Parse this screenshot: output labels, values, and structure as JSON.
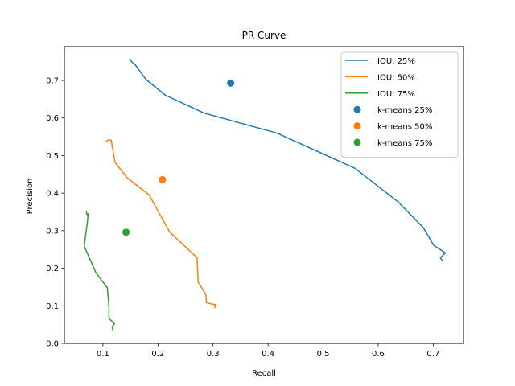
{
  "chart_data": {
    "type": "line",
    "title": "PR Curve",
    "xlabel": "Recall",
    "ylabel": "Precision",
    "xlim": [
      0.03,
      0.755
    ],
    "ylim": [
      0.0,
      0.79
    ],
    "xticks": [
      0.1,
      0.2,
      0.3,
      0.4,
      0.5,
      0.6,
      0.7
    ],
    "xtick_labels": [
      "0.1",
      "0.2",
      "0.3",
      "0.4",
      "0.5",
      "0.6",
      "0.7"
    ],
    "yticks": [
      0.0,
      0.1,
      0.2,
      0.3,
      0.4,
      0.5,
      0.6,
      0.7
    ],
    "ytick_labels": [
      "0.0",
      "0.1",
      "0.2",
      "0.3",
      "0.4",
      "0.5",
      "0.6",
      "0.7"
    ],
    "grid": false,
    "legend_position": "top-right",
    "series": [
      {
        "name": "IOU: 25%",
        "kind": "line",
        "color": "#1f77b4",
        "x": [
          0.149,
          0.152,
          0.158,
          0.178,
          0.213,
          0.284,
          0.416,
          0.558,
          0.636,
          0.682,
          0.701,
          0.722,
          0.713,
          0.716
        ],
        "y": [
          0.757,
          0.75,
          0.743,
          0.703,
          0.661,
          0.613,
          0.56,
          0.466,
          0.377,
          0.308,
          0.261,
          0.241,
          0.228,
          0.221
        ]
      },
      {
        "name": "IOU: 50%",
        "kind": "line",
        "color": "#ff7f0e",
        "x": [
          0.106,
          0.11,
          0.115,
          0.122,
          0.144,
          0.184,
          0.221,
          0.271,
          0.273,
          0.287,
          0.288,
          0.304,
          0.303
        ],
        "y": [
          0.538,
          0.542,
          0.541,
          0.482,
          0.441,
          0.395,
          0.297,
          0.228,
          0.163,
          0.13,
          0.108,
          0.103,
          0.095
        ]
      },
      {
        "name": "IOU: 75%",
        "kind": "line",
        "color": "#2ca02c",
        "x": [
          0.07,
          0.071,
          0.073,
          0.072,
          0.066,
          0.087,
          0.108,
          0.111,
          0.111,
          0.121,
          0.117,
          0.118
        ],
        "y": [
          0.35,
          0.343,
          0.345,
          0.325,
          0.259,
          0.189,
          0.148,
          0.098,
          0.066,
          0.053,
          0.042,
          0.036
        ]
      },
      {
        "name": "k-means 25%",
        "kind": "scatter",
        "color": "#1f77b4",
        "x": [
          0.332
        ],
        "y": [
          0.693
        ]
      },
      {
        "name": "k-means 50%",
        "kind": "scatter",
        "color": "#ff7f0e",
        "x": [
          0.208
        ],
        "y": [
          0.436
        ]
      },
      {
        "name": "k-means 75%",
        "kind": "scatter",
        "color": "#2ca02c",
        "x": [
          0.142
        ],
        "y": [
          0.296
        ]
      }
    ]
  }
}
